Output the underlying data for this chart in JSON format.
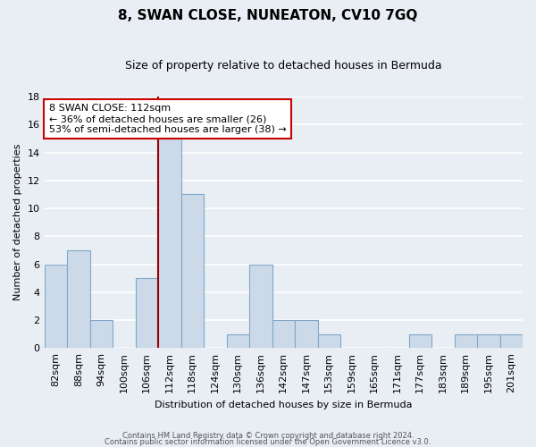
{
  "title": "8, SWAN CLOSE, NUNEATON, CV10 7GQ",
  "subtitle": "Size of property relative to detached houses in Bermuda",
  "xlabel": "Distribution of detached houses by size in Bermuda",
  "ylabel": "Number of detached properties",
  "categories": [
    "82sqm",
    "88sqm",
    "94sqm",
    "100sqm",
    "106sqm",
    "112sqm",
    "118sqm",
    "124sqm",
    "130sqm",
    "136sqm",
    "142sqm",
    "147sqm",
    "153sqm",
    "159sqm",
    "165sqm",
    "171sqm",
    "177sqm",
    "183sqm",
    "189sqm",
    "195sqm",
    "201sqm"
  ],
  "values": [
    6,
    7,
    2,
    0,
    5,
    15,
    11,
    0,
    1,
    6,
    2,
    2,
    1,
    0,
    0,
    0,
    1,
    0,
    1,
    1,
    1
  ],
  "bar_color": "#ccd9e8",
  "bar_edge_color": "#7fa8cc",
  "marker_index": 5,
  "marker_color": "#990000",
  "ylim": [
    0,
    18
  ],
  "yticks": [
    0,
    2,
    4,
    6,
    8,
    10,
    12,
    14,
    16,
    18
  ],
  "annotation_text": "8 SWAN CLOSE: 112sqm\n← 36% of detached houses are smaller (26)\n53% of semi-detached houses are larger (38) →",
  "annotation_box_facecolor": "#ffffff",
  "annotation_box_edgecolor": "#cc0000",
  "footer_line1": "Contains HM Land Registry data © Crown copyright and database right 2024.",
  "footer_line2": "Contains public sector information licensed under the Open Government Licence v3.0.",
  "background_color": "#e8eef4",
  "grid_color": "#ffffff",
  "title_fontsize": 11,
  "subtitle_fontsize": 9,
  "ylabel_fontsize": 8,
  "xlabel_fontsize": 8,
  "tick_fontsize": 8,
  "ann_fontsize": 8
}
